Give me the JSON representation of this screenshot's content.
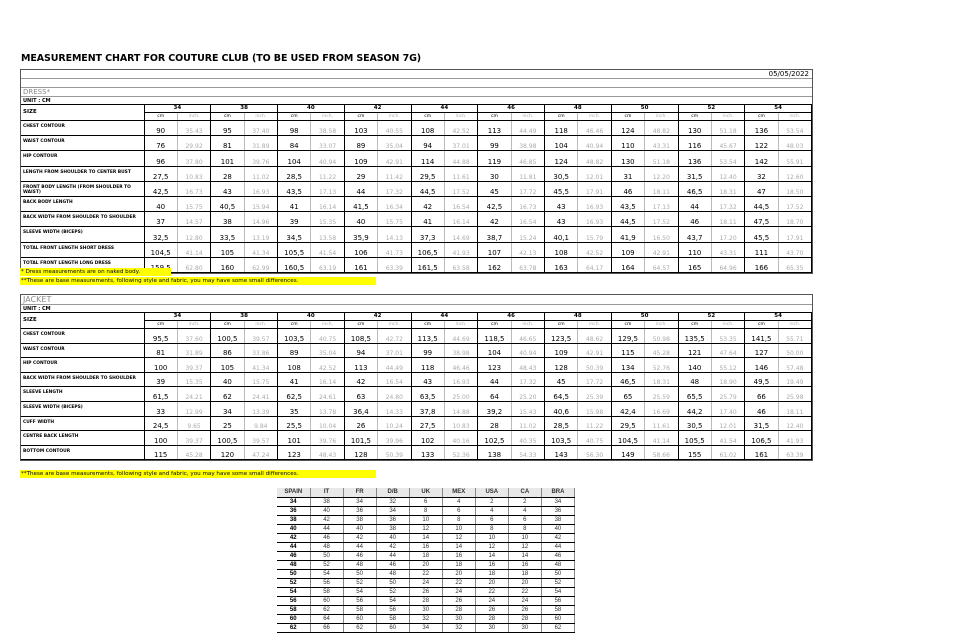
{
  "title": "MEASUREMENT CHART FOR COUTURE CLUB (TO BE USED FROM SEASON 7G)",
  "date": "05/05/2022",
  "sizes": [
    "34",
    "38",
    "40",
    "42",
    "44",
    "46",
    "48",
    "50",
    "52",
    "54"
  ],
  "size_label": "SIZE",
  "unit_cm": "cm",
  "unit_inch": "inch.",
  "dress": {
    "name": "DRESS*",
    "unit": "UNIT : CM",
    "rows": [
      {
        "label": "CHEST CONTOUR",
        "cm": [
          "90",
          "95",
          "98",
          "103",
          "108",
          "113",
          "118",
          "124",
          "130",
          "136"
        ],
        "inch": [
          "35.43",
          "37.40",
          "38.58",
          "40.55",
          "42.52",
          "44.49",
          "46.46",
          "48.82",
          "51.18",
          "53.54"
        ]
      },
      {
        "label": "WAIST CONTOUR",
        "cm": [
          "76",
          "81",
          "84",
          "89",
          "94",
          "99",
          "104",
          "110",
          "116",
          "122"
        ],
        "inch": [
          "29.92",
          "31.89",
          "33.07",
          "35.04",
          "37.01",
          "38.98",
          "40.94",
          "43.31",
          "45.67",
          "48.03"
        ]
      },
      {
        "label": "HIP CONTOUR",
        "cm": [
          "96",
          "101",
          "104",
          "109",
          "114",
          "119",
          "124",
          "130",
          "136",
          "142"
        ],
        "inch": [
          "37.80",
          "39.76",
          "40.94",
          "42.91",
          "44.88",
          "46.85",
          "48.82",
          "51.18",
          "53.54",
          "55.91"
        ]
      },
      {
        "label": "LENGTH FROM SHOULDER TO CENTER BUST",
        "cm": [
          "27,5",
          "28",
          "28,5",
          "29",
          "29,5",
          "30",
          "30,5",
          "31",
          "31,5",
          "32"
        ],
        "inch": [
          "10.83",
          "11.02",
          "11.22",
          "11.42",
          "11.61",
          "11.81",
          "12.01",
          "12.20",
          "12.40",
          "12.60"
        ]
      },
      {
        "label": "FRONT BODY LENGTH (FROM SHOULDER TO WAIST)",
        "cm": [
          "42,5",
          "43",
          "43,5",
          "44",
          "44,5",
          "45",
          "45,5",
          "46",
          "46,5",
          "47"
        ],
        "inch": [
          "16.73",
          "16.93",
          "17.13",
          "17.32",
          "17.52",
          "17.72",
          "17.91",
          "18.11",
          "18.31",
          "18.50"
        ]
      },
      {
        "label": "BACK BODY LENGTH",
        "cm": [
          "40",
          "40,5",
          "41",
          "41,5",
          "42",
          "42,5",
          "43",
          "43,5",
          "44",
          "44,5"
        ],
        "inch": [
          "15.75",
          "15.94",
          "16.14",
          "16.34",
          "16.54",
          "16.73",
          "16.93",
          "17.13",
          "17.32",
          "17.52"
        ]
      },
      {
        "label": "BACK WIDTH FROM SHOULDER TO SHOULDER",
        "cm": [
          "37",
          "38",
          "39",
          "40",
          "41",
          "42",
          "43",
          "44,5",
          "46",
          "47,5"
        ],
        "inch": [
          "14.57",
          "14.96",
          "15.35",
          "15.75",
          "16.14",
          "16.54",
          "16.93",
          "17.52",
          "18.11",
          "18.70"
        ]
      },
      {
        "label": "SLEEVE WIDTH (BICEPS)",
        "cm": [
          "32,5",
          "33,5",
          "34,5",
          "35,9",
          "37,3",
          "38,7",
          "40,1",
          "41,9",
          "43,7",
          "45,5"
        ],
        "inch": [
          "12.80",
          "13.19",
          "13.58",
          "14.13",
          "14.69",
          "15.24",
          "15.79",
          "16.50",
          "17.20",
          "17.91"
        ]
      },
      {
        "label": "TOTAL FRONT LENGTH SHORT DRESS",
        "cm": [
          "104,5",
          "105",
          "105,5",
          "106",
          "106,5",
          "107",
          "108",
          "109",
          "110",
          "111"
        ],
        "inch": [
          "41.14",
          "41.34",
          "41.54",
          "41.73",
          "41.93",
          "42.13",
          "42.52",
          "42.91",
          "43.31",
          "43.70"
        ]
      },
      {
        "label": "TOTAL FRONT LENGTH LONG DRESS",
        "cm": [
          "159,5",
          "160",
          "160,5",
          "161",
          "161,5",
          "162",
          "163",
          "164",
          "165",
          "166"
        ],
        "inch": [
          "62.80",
          "62.99",
          "63.19",
          "63.39",
          "63.58",
          "63.78",
          "64.17",
          "64.57",
          "64.96",
          "65.35"
        ]
      }
    ]
  },
  "notes": {
    "naked": "* Dress measurements are on naked body.",
    "base": "**These are base measurements, following style and fabric, you may have some small differences."
  },
  "jacket": {
    "name": "JACKET",
    "unit": "UNIT : CM",
    "rows": [
      {
        "label": "CHEST CONTOUR",
        "cm": [
          "95,5",
          "100,5",
          "103,5",
          "108,5",
          "113,5",
          "118,5",
          "123,5",
          "129,5",
          "135,5",
          "141,5"
        ],
        "inch": [
          "37.60",
          "39.57",
          "40.75",
          "42.72",
          "44.69",
          "46.65",
          "48.62",
          "50.98",
          "53.35",
          "55.71"
        ]
      },
      {
        "label": "WAIST CONTOUR",
        "cm": [
          "81",
          "86",
          "89",
          "94",
          "99",
          "104",
          "109",
          "115",
          "121",
          "127"
        ],
        "inch": [
          "31.89",
          "33.86",
          "35.04",
          "37.01",
          "38.98",
          "40.94",
          "42.91",
          "45.28",
          "47.64",
          "50.00"
        ]
      },
      {
        "label": "HIP CONTOUR",
        "cm": [
          "100",
          "105",
          "108",
          "113",
          "118",
          "123",
          "128",
          "134",
          "140",
          "146"
        ],
        "inch": [
          "39.37",
          "41.34",
          "42.52",
          "44.49",
          "46.46",
          "48.43",
          "50.39",
          "52.76",
          "55.12",
          "57.48"
        ]
      },
      {
        "label": "BACK WIDTH FROM SHOULDER TO SHOULDER",
        "cm": [
          "39",
          "40",
          "41",
          "42",
          "43",
          "44",
          "45",
          "46,5",
          "48",
          "49,5"
        ],
        "inch": [
          "15.35",
          "15.75",
          "16.14",
          "16.54",
          "16.93",
          "17.32",
          "17.72",
          "18.31",
          "18.90",
          "19.49"
        ]
      },
      {
        "label": "SLEEVE LENGTH",
        "cm": [
          "61,5",
          "62",
          "62,5",
          "63",
          "63,5",
          "64",
          "64,5",
          "65",
          "65,5",
          "66"
        ],
        "inch": [
          "24.21",
          "24.41",
          "24.61",
          "24.80",
          "25.00",
          "25.20",
          "25.39",
          "25.59",
          "25.79",
          "25.98"
        ]
      },
      {
        "label": "SLEEVE WIDTH (BICEPS)",
        "cm": [
          "33",
          "34",
          "35",
          "36,4",
          "37,8",
          "39,2",
          "40,6",
          "42,4",
          "44,2",
          "46"
        ],
        "inch": [
          "12.99",
          "13.39",
          "13.78",
          "14.33",
          "14.88",
          "15.43",
          "15.98",
          "16.69",
          "17.40",
          "18.11"
        ]
      },
      {
        "label": "CUFF WIDTH",
        "cm": [
          "24,5",
          "25",
          "25,5",
          "26",
          "27,5",
          "28",
          "28,5",
          "29,5",
          "30,5",
          "31,5"
        ],
        "inch": [
          "9.65",
          "9.84",
          "10.04",
          "10.24",
          "10.83",
          "11.02",
          "11.22",
          "11.61",
          "12.01",
          "12.40"
        ]
      },
      {
        "label": "CENTRE BACK LENGTH",
        "cm": [
          "100",
          "100,5",
          "101",
          "101,5",
          "102",
          "102,5",
          "103,5",
          "104,5",
          "105,5",
          "106,5"
        ],
        "inch": [
          "39.37",
          "39.57",
          "39.76",
          "39.96",
          "40.16",
          "40.35",
          "40.75",
          "41.14",
          "41.54",
          "41.93"
        ]
      },
      {
        "label": "BOTTOM CONTOUR",
        "cm": [
          "115",
          "120",
          "123",
          "128",
          "133",
          "138",
          "143",
          "149",
          "155",
          "161"
        ],
        "inch": [
          "45.28",
          "47.24",
          "48.43",
          "50.39",
          "52.36",
          "54.33",
          "56.30",
          "58.66",
          "61.02",
          "63.39"
        ]
      }
    ]
  },
  "conversion": {
    "headers": [
      "SPAIN",
      "IT",
      "FR",
      "D/B",
      "UK",
      "MEX",
      "USA",
      "CA",
      "BRA"
    ],
    "rows": [
      [
        "34",
        "38",
        "34",
        "32",
        "6",
        "4",
        "2",
        "2",
        "34"
      ],
      [
        "36",
        "40",
        "36",
        "34",
        "8",
        "6",
        "4",
        "4",
        "36"
      ],
      [
        "38",
        "42",
        "38",
        "36",
        "10",
        "8",
        "6",
        "6",
        "38"
      ],
      [
        "40",
        "44",
        "40",
        "38",
        "12",
        "10",
        "8",
        "8",
        "40"
      ],
      [
        "42",
        "46",
        "42",
        "40",
        "14",
        "12",
        "10",
        "10",
        "42"
      ],
      [
        "44",
        "48",
        "44",
        "42",
        "16",
        "14",
        "12",
        "12",
        "44"
      ],
      [
        "46",
        "50",
        "46",
        "44",
        "18",
        "16",
        "14",
        "14",
        "46"
      ],
      [
        "48",
        "52",
        "48",
        "46",
        "20",
        "18",
        "16",
        "16",
        "48"
      ],
      [
        "50",
        "54",
        "50",
        "48",
        "22",
        "20",
        "18",
        "18",
        "50"
      ],
      [
        "52",
        "56",
        "52",
        "50",
        "24",
        "22",
        "20",
        "20",
        "52"
      ],
      [
        "54",
        "58",
        "54",
        "52",
        "26",
        "24",
        "22",
        "22",
        "54"
      ],
      [
        "56",
        "60",
        "56",
        "54",
        "28",
        "26",
        "24",
        "24",
        "56"
      ],
      [
        "58",
        "62",
        "58",
        "56",
        "30",
        "28",
        "26",
        "26",
        "58"
      ],
      [
        "60",
        "64",
        "60",
        "58",
        "32",
        "30",
        "28",
        "28",
        "60"
      ],
      [
        "62",
        "66",
        "62",
        "60",
        "34",
        "32",
        "30",
        "30",
        "62"
      ]
    ]
  }
}
